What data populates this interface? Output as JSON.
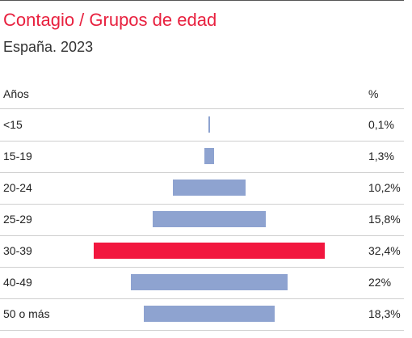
{
  "title": "Contagio / Grupos de edad",
  "subtitle": "España. 2023",
  "headers": {
    "category": "Años",
    "value": "%"
  },
  "colors": {
    "bar": "#8ea3d0",
    "highlight": "#f2173f",
    "title": "#e8213f"
  },
  "chart_data": {
    "type": "bar",
    "orientation": "horizontal-centered",
    "title": "Contagio / Grupos de edad",
    "subtitle": "España. 2023",
    "categories": [
      "<15",
      "15-19",
      "20-24",
      "25-29",
      "30-39",
      "40-49",
      "50 o más"
    ],
    "values": [
      0.1,
      1.3,
      10.2,
      15.8,
      32.4,
      22,
      18.3
    ],
    "value_labels": [
      "0,1%",
      "1,3%",
      "10,2%",
      "15,8%",
      "32,4%",
      "22%",
      "18,3%"
    ],
    "highlight_index": 4,
    "unit": "%",
    "grid": false
  }
}
